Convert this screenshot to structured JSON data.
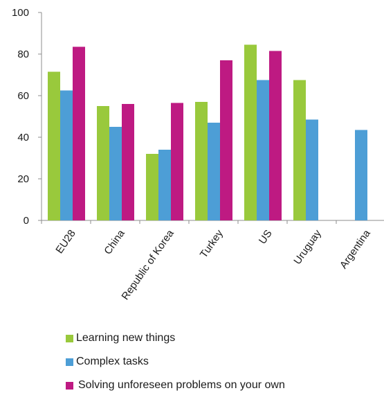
{
  "chart_data": {
    "type": "bar",
    "categories": [
      "EU28",
      "China",
      "Republic of Korea",
      "Turkey",
      "US",
      "Uruguay",
      "Argentina"
    ],
    "series": [
      {
        "name": "Learning new things",
        "color": "#99c93c",
        "values": [
          71.5,
          55,
          32,
          57,
          84.5,
          67.5,
          null
        ]
      },
      {
        "name": "Complex tasks",
        "color": "#4d9ed6",
        "values": [
          62.5,
          45,
          34,
          47,
          67.5,
          48.5,
          43.5
        ]
      },
      {
        "name": "Solving unforeseen problems on your own",
        "color": "#be1a82",
        "values": [
          83.5,
          56,
          56.5,
          77,
          81.5,
          null,
          null
        ]
      }
    ],
    "yticks": [
      "0",
      "20",
      "40",
      "60",
      "80",
      "100"
    ],
    "ylim": [
      0,
      100
    ],
    "grid": false,
    "legend_position": "bottom"
  }
}
